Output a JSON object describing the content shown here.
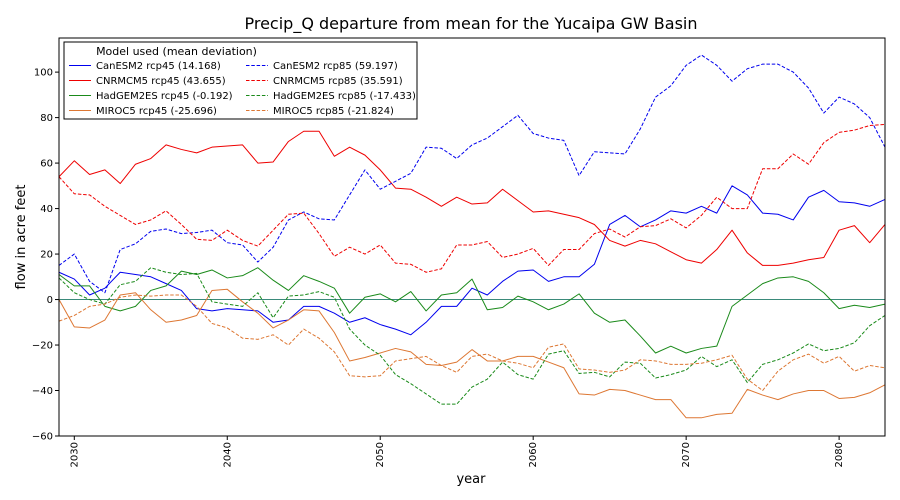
{
  "chart_data": {
    "type": "line",
    "title": "Precip_Q departure from mean for the Yucaipa GW Basin",
    "xlabel": "year",
    "ylabel": "flow in acre feet",
    "xlim": [
      2029,
      2083
    ],
    "ylim": [
      -60,
      115
    ],
    "x_ticks": [
      2030,
      2040,
      2050,
      2060,
      2070,
      2080
    ],
    "y_ticks": [
      -60,
      -40,
      -20,
      0,
      20,
      40,
      60,
      80,
      100
    ],
    "zero_line_color": "#3a8a7a",
    "legend": {
      "title": "Model used (mean deviation)",
      "placement": "upper-left",
      "columns": 2
    },
    "x": [
      2029,
      2030,
      2031,
      2032,
      2033,
      2034,
      2035,
      2036,
      2037,
      2038,
      2039,
      2040,
      2041,
      2042,
      2043,
      2044,
      2045,
      2046,
      2047,
      2048,
      2049,
      2050,
      2051,
      2052,
      2053,
      2054,
      2055,
      2056,
      2057,
      2058,
      2059,
      2060,
      2061,
      2062,
      2063,
      2064,
      2065,
      2066,
      2067,
      2068,
      2069,
      2070,
      2071,
      2072,
      2073,
      2074,
      2075,
      2076,
      2077,
      2078,
      2079,
      2080,
      2081,
      2082,
      2083
    ],
    "series": [
      {
        "name": "CanESM2 rcp45 (14.168)",
        "color": "#0000ee",
        "dash": "solid",
        "values": [
          12,
          9,
          2,
          5,
          12,
          11,
          10,
          7,
          4,
          -4,
          -5,
          -4,
          -4.5,
          -5,
          -10,
          -9,
          -3,
          -3,
          -6,
          -10,
          -8,
          -11,
          -13,
          -15.5,
          -10,
          -3,
          -3,
          5,
          2,
          8,
          12.5,
          13,
          8,
          10,
          10,
          15.5,
          33,
          37,
          32,
          35,
          39,
          38,
          41,
          38,
          50,
          46,
          38,
          37.5,
          35,
          45,
          48,
          43,
          42.5,
          41,
          44
        ]
      },
      {
        "name": "CNRMCM5 rcp45 (43.655)",
        "color": "#ee0000",
        "dash": "solid",
        "values": [
          54,
          61,
          55,
          57,
          51,
          59.5,
          62,
          68,
          66,
          64.5,
          67,
          67.5,
          68,
          60,
          60.5,
          69.5,
          74,
          74,
          63,
          67,
          63.5,
          57,
          49,
          48.5,
          45,
          41,
          45,
          42,
          42.5,
          48.5,
          43.5,
          38.5,
          39,
          37.5,
          36,
          33,
          26,
          23.5,
          26,
          24.5,
          21,
          17.5,
          16,
          22,
          30.5,
          20.5,
          15,
          15,
          16,
          17.5,
          18.5,
          30.5,
          32.5,
          25,
          33
        ]
      },
      {
        "name": "HadGEM2ES rcp45 (-0.192)",
        "color": "#1a8a1a",
        "dash": "solid",
        "values": [
          11,
          6,
          6,
          -3,
          -5,
          -3,
          4,
          6,
          12.5,
          11,
          13,
          9.5,
          10.5,
          14,
          8.5,
          4,
          10.5,
          8,
          5,
          -6,
          1,
          2.5,
          -1,
          3.5,
          -5,
          2,
          3,
          9,
          -4.5,
          -3.5,
          1.5,
          -1,
          -4.5,
          -2,
          2.5,
          -6,
          -10,
          -9,
          -16,
          -23.5,
          -20.5,
          -23.5,
          -21.5,
          -20.5,
          -3,
          2,
          7,
          9.5,
          10,
          8,
          3,
          -4,
          -2.5,
          -3.5,
          -2
        ]
      },
      {
        "name": "MIROC5 rcp45 (-25.696)",
        "color": "#dd7733",
        "dash": "solid",
        "values": [
          0,
          -12,
          -12.5,
          -9,
          2,
          3,
          -4.5,
          -10,
          -9,
          -7,
          4,
          4.5,
          -1,
          -6,
          -12.5,
          -9,
          -4.5,
          -5,
          -14.5,
          -27,
          -25.5,
          -23.5,
          -21.5,
          -23,
          -28.5,
          -29,
          -27.5,
          -22,
          -27,
          -27,
          -25,
          -25,
          -27.5,
          -30,
          -41.5,
          -42,
          -39.5,
          -40,
          -42,
          -44,
          -44,
          -52,
          -52,
          -50.5,
          -50,
          -39.5,
          -42,
          -44,
          -41.5,
          -40,
          -40,
          -43.5,
          -43,
          -41,
          -37.5
        ]
      },
      {
        "name": "CanESM2 rcp85 (59.197)",
        "color": "#0000ee",
        "dash": "dashed",
        "values": [
          15,
          20,
          8,
          3,
          22,
          24.5,
          30,
          31,
          29,
          29.5,
          30.5,
          25,
          24,
          16.5,
          23,
          35,
          38.5,
          35.5,
          35,
          46,
          57,
          48.5,
          52,
          55.5,
          67,
          66.5,
          62,
          68,
          71,
          76,
          81,
          73,
          71,
          70,
          54.5,
          65,
          64.5,
          64,
          75,
          89,
          94,
          103,
          107.5,
          103,
          96,
          101.5,
          103.5,
          103.5,
          100,
          93,
          82,
          89,
          86,
          80,
          67
        ]
      },
      {
        "name": "CNRMCM5 rcp85 (35.591)",
        "color": "#ee0000",
        "dash": "dashed",
        "values": [
          54,
          46.5,
          46,
          41,
          37,
          33,
          35,
          39,
          33,
          26.5,
          26,
          30.5,
          26,
          23.5,
          30.5,
          37.5,
          38,
          29,
          19,
          23,
          20,
          24,
          16,
          15.5,
          12,
          13.5,
          24,
          24,
          25.5,
          18.5,
          20,
          22.5,
          15,
          22,
          22,
          29,
          31,
          27.5,
          32,
          32.5,
          35.5,
          31.5,
          37,
          45,
          40,
          40,
          57.5,
          57.5,
          64,
          59.5,
          69,
          73.5,
          74.5,
          76.5,
          77
        ]
      },
      {
        "name": "HadGEM2ES rcp85 (-17.433)",
        "color": "#1a8a1a",
        "dash": "dashed",
        "values": [
          9.5,
          3,
          0,
          -2,
          6.5,
          8,
          14,
          12,
          11,
          11.5,
          -1,
          -2,
          -3,
          3,
          -8,
          1.5,
          2,
          3.5,
          1,
          -13,
          -20,
          -24.5,
          -33,
          -37,
          -41.5,
          -46,
          -46,
          -38.5,
          -35,
          -27.5,
          -33,
          -35,
          -24,
          -22.5,
          -32.5,
          -32,
          -34,
          -27.5,
          -28,
          -34.5,
          -33,
          -31,
          -25,
          -29.5,
          -26.5,
          -36.5,
          -28.5,
          -26.5,
          -23.5,
          -19.5,
          -22.5,
          -21.5,
          -19,
          -11.5,
          -7
        ]
      },
      {
        "name": "MIROC5 rcp85 (-21.824)",
        "color": "#dd7733",
        "dash": "dashed",
        "values": [
          -9.5,
          -7,
          -3,
          -2,
          1,
          2,
          1.5,
          2,
          2,
          -3,
          -10.5,
          -12.5,
          -17,
          -17.5,
          -15.5,
          -20,
          -13,
          -17,
          -23,
          -33.5,
          -34,
          -33.5,
          -27,
          -26,
          -25,
          -29,
          -32,
          -25,
          -24,
          -27,
          -28,
          -30,
          -21,
          -19.5,
          -30.5,
          -31,
          -32,
          -31,
          -26.5,
          -27,
          -28.5,
          -28.5,
          -28,
          -26.5,
          -24.5,
          -35,
          -40,
          -31.5,
          -26.5,
          -24,
          -28,
          -25,
          -31.5,
          -29,
          -30
        ]
      }
    ]
  }
}
